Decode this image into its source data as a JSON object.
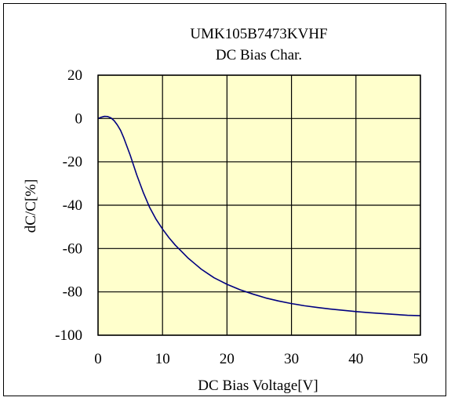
{
  "chart_data": {
    "type": "line",
    "title": "UMK105B7473KVHF",
    "subtitle": "DC Bias Char.",
    "xlabel": "DC Bias Voltage[V]",
    "ylabel": "dC/C[%]",
    "xlim": [
      0,
      50
    ],
    "ylim": [
      -100,
      20
    ],
    "xticks": [
      0,
      10,
      20,
      30,
      40,
      50
    ],
    "yticks": [
      20,
      0,
      -20,
      -40,
      -60,
      -80,
      -100
    ],
    "grid": true,
    "legend": "none",
    "colors": {
      "plot_bg": "#ffffcc",
      "line": "#000080",
      "grid": "#000000"
    },
    "series": [
      {
        "x": [
          0,
          0.5,
          1,
          1.5,
          2,
          2.5,
          3,
          3.5,
          4,
          5,
          6,
          7,
          8,
          9,
          10,
          11,
          12,
          13,
          14,
          15,
          16,
          17,
          18,
          19,
          20,
          22,
          24,
          26,
          28,
          30,
          32,
          34,
          36,
          38,
          40,
          42,
          44,
          46,
          48,
          50
        ],
        "y": [
          0,
          0.6,
          1.0,
          0.9,
          0.3,
          -1.0,
          -3.0,
          -5.5,
          -9.0,
          -17.0,
          -26.0,
          -34.0,
          -41.0,
          -46.5,
          -51.0,
          -55.0,
          -58.5,
          -61.5,
          -64.5,
          -67.0,
          -69.5,
          -71.5,
          -73.5,
          -75.0,
          -76.5,
          -79.0,
          -81.0,
          -82.8,
          -84.2,
          -85.4,
          -86.4,
          -87.2,
          -87.9,
          -88.5,
          -89.1,
          -89.6,
          -90.0,
          -90.4,
          -90.8,
          -91.0
        ]
      }
    ]
  }
}
